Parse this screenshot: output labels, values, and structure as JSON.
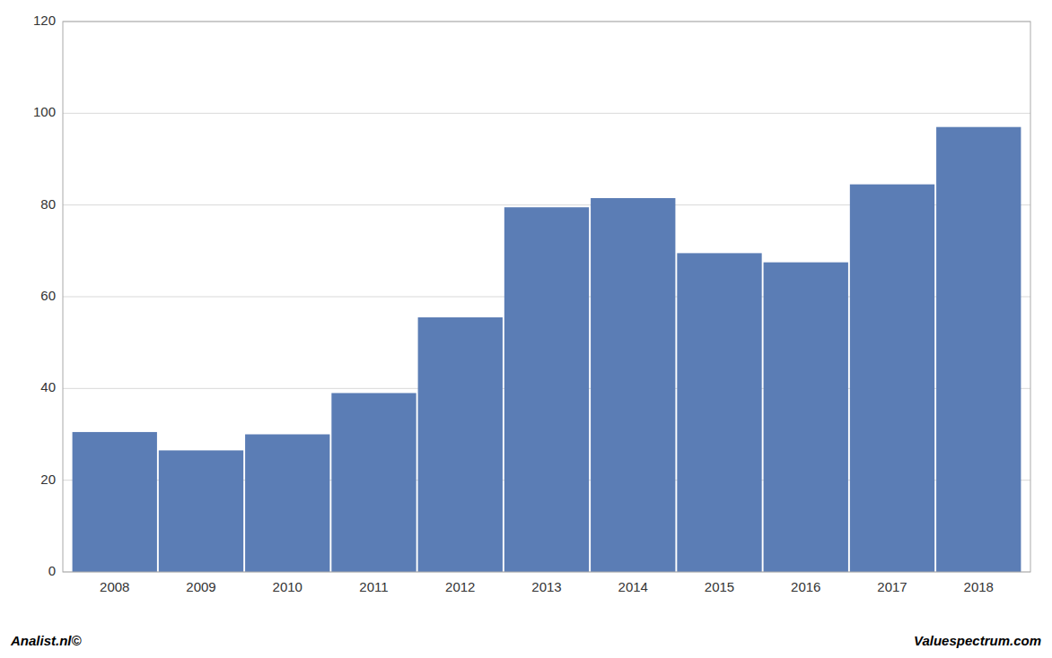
{
  "chart_data": {
    "type": "bar",
    "categories": [
      "2008",
      "2009",
      "2010",
      "2011",
      "2012",
      "2013",
      "2014",
      "2015",
      "2016",
      "2017",
      "2018"
    ],
    "values": [
      30.5,
      26.5,
      30.0,
      39.0,
      55.5,
      79.5,
      81.5,
      69.5,
      67.5,
      84.5,
      97.0
    ],
    "color": "#5b7db5",
    "ylim": [
      0,
      120
    ],
    "yticks": [
      0,
      20,
      40,
      60,
      80,
      100,
      120
    ],
    "grid": true,
    "annotations": [
      "Analist.nl©",
      "Valuespectrum.com"
    ]
  }
}
